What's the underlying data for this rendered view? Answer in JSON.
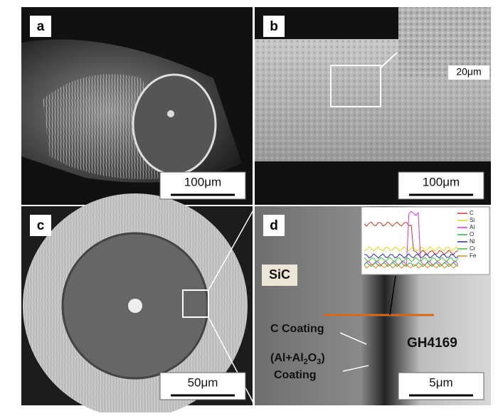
{
  "panels": [
    {
      "label": "a",
      "scale_bar": "100μm"
    },
    {
      "label": "b",
      "scale_bar": "100μm",
      "inset_scale_bar": "20μm"
    },
    {
      "label": "c",
      "scale_bar": "50μm"
    },
    {
      "label": "d",
      "scale_bar": "5μm"
    }
  ],
  "annotations": {
    "sic": "SiC",
    "c_coating": "C Coating",
    "al_coating": {
      "parts": [
        "(Al+Al",
        "2",
        "O",
        "3",
        ")"
      ],
      "line2": "Coating"
    },
    "substrate": "GH4169"
  },
  "inset_legend": [
    {
      "name": "C",
      "color": "#c0392b"
    },
    {
      "name": "Si",
      "color": "#e6d21a"
    },
    {
      "name": "Al",
      "color": "#d23bd2"
    },
    {
      "name": "O",
      "color": "#2fa84f"
    },
    {
      "name": "Ni",
      "color": "#2a2aa0"
    },
    {
      "name": "Cr",
      "color": "#3cc03c"
    },
    {
      "name": "Fe",
      "color": "#e08a1a"
    }
  ]
}
